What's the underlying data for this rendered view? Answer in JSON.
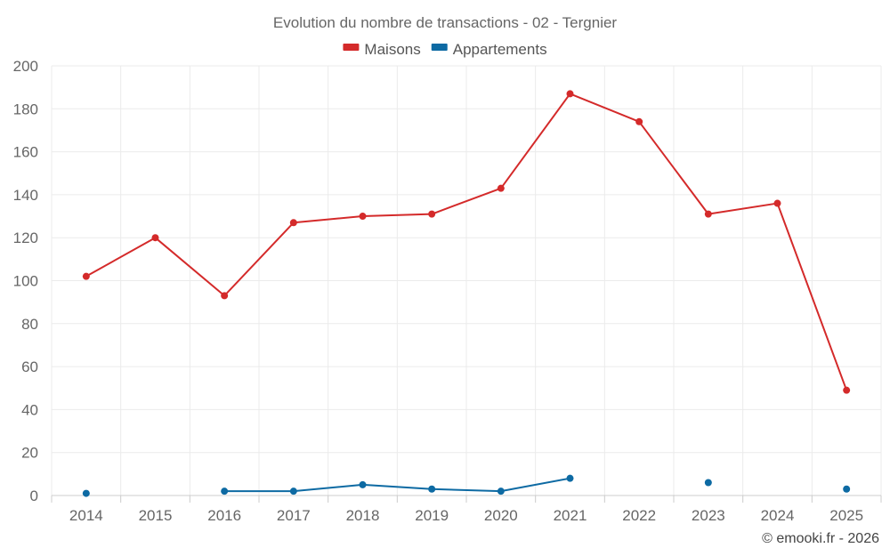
{
  "chart_data": {
    "type": "line",
    "title": "Evolution du nombre de transactions - 02 - Tergnier",
    "categories": [
      "2014",
      "2015",
      "2016",
      "2017",
      "2018",
      "2019",
      "2020",
      "2021",
      "2022",
      "2023",
      "2024",
      "2025"
    ],
    "series": [
      {
        "name": "Maisons",
        "color": "#d42a2a",
        "values": [
          102,
          120,
          93,
          127,
          130,
          131,
          143,
          187,
          174,
          131,
          136,
          49
        ]
      },
      {
        "name": "Appartements",
        "color": "#0d6aa3",
        "values": [
          1,
          null,
          2,
          2,
          5,
          3,
          2,
          8,
          null,
          6,
          null,
          3
        ]
      }
    ],
    "ylim": [
      0,
      200
    ],
    "yticks": [
      0,
      20,
      40,
      60,
      80,
      100,
      120,
      140,
      160,
      180,
      200
    ],
    "xlabel": "",
    "ylabel": "",
    "grid": true,
    "legend": "top-center"
  },
  "credit": "© emooki.fr - 2026"
}
